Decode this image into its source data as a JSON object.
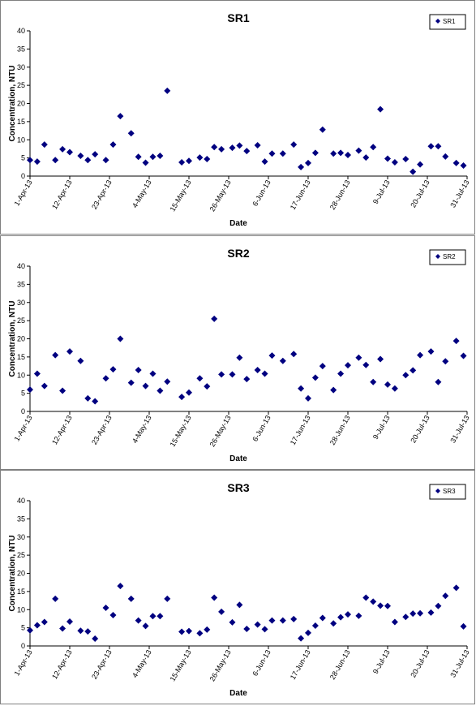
{
  "colors": {
    "marker": "#000080",
    "axis": "#000000",
    "frame": "#808080"
  },
  "chart_data": [
    {
      "type": "scatter",
      "title": "SR1",
      "xlabel": "Date",
      "ylabel": "Concentration, NTU",
      "ylim": [
        0,
        40
      ],
      "yticks": [
        0,
        5,
        10,
        15,
        20,
        25,
        30,
        35,
        40
      ],
      "xlim": [
        "2013-04-01",
        "2013-07-31"
      ],
      "xticks": [
        "1-Apr-13",
        "12-Apr-13",
        "23-Apr-13",
        "4-May-13",
        "15-May-13",
        "26-May-13",
        "6-Jun-13",
        "17-Jun-13",
        "28-Jun-13",
        "9-Jul-13",
        "20-Jul-13",
        "31-Jul-13"
      ],
      "grid": false,
      "legend_position": "top-right",
      "series": [
        {
          "name": "SR1",
          "marker": "diamond",
          "x": [
            "2013-04-01",
            "2013-04-03",
            "2013-04-05",
            "2013-04-08",
            "2013-04-10",
            "2013-04-12",
            "2013-04-15",
            "2013-04-17",
            "2013-04-19",
            "2013-04-22",
            "2013-04-24",
            "2013-04-26",
            "2013-04-29",
            "2013-05-01",
            "2013-05-03",
            "2013-05-05",
            "2013-05-07",
            "2013-05-09",
            "2013-05-13",
            "2013-05-15",
            "2013-05-18",
            "2013-05-20",
            "2013-05-22",
            "2013-05-24",
            "2013-05-27",
            "2013-05-29",
            "2013-05-31",
            "2013-06-03",
            "2013-06-05",
            "2013-06-07",
            "2013-06-10",
            "2013-06-13",
            "2013-06-15",
            "2013-06-17",
            "2013-06-19",
            "2013-06-21",
            "2013-06-24",
            "2013-06-26",
            "2013-06-28",
            "2013-07-01",
            "2013-07-03",
            "2013-07-05",
            "2013-07-07",
            "2013-07-09",
            "2013-07-11",
            "2013-07-14",
            "2013-07-16",
            "2013-07-18",
            "2013-07-21",
            "2013-07-23",
            "2013-07-25",
            "2013-07-28",
            "2013-07-30"
          ],
          "y": [
            4.4,
            4.0,
            8.7,
            4.4,
            7.4,
            6.6,
            5.6,
            4.4,
            6.0,
            4.4,
            8.7,
            16.5,
            11.8,
            5.3,
            3.7,
            5.3,
            5.6,
            23.5,
            3.8,
            4.2,
            5.1,
            4.7,
            8.0,
            7.4,
            7.8,
            8.4,
            6.9,
            8.5,
            4.0,
            6.2,
            6.2,
            8.7,
            2.5,
            3.6,
            6.4,
            12.8,
            6.2,
            6.4,
            5.8,
            7.0,
            5.1,
            8.0,
            18.4,
            4.8,
            3.8,
            4.7,
            1.2,
            3.2,
            8.2,
            8.2,
            5.4,
            3.6,
            2.9
          ]
        }
      ]
    },
    {
      "type": "scatter",
      "title": "SR2",
      "xlabel": "Date",
      "ylabel": "Concentration, NTU",
      "ylim": [
        0,
        40
      ],
      "yticks": [
        0,
        5,
        10,
        15,
        20,
        25,
        30,
        35,
        40
      ],
      "xlim": [
        "2013-04-01",
        "2013-07-31"
      ],
      "xticks": [
        "1-Apr-13",
        "12-Apr-13",
        "23-Apr-13",
        "4-May-13",
        "15-May-13",
        "26-May-13",
        "6-Jun-13",
        "17-Jun-13",
        "28-Jun-13",
        "9-Jul-13",
        "20-Jul-13",
        "31-Jul-13"
      ],
      "grid": false,
      "legend_position": "top-right",
      "series": [
        {
          "name": "SR2",
          "marker": "diamond",
          "x": [
            "2013-04-01",
            "2013-04-03",
            "2013-04-05",
            "2013-04-08",
            "2013-04-10",
            "2013-04-12",
            "2013-04-15",
            "2013-04-17",
            "2013-04-19",
            "2013-04-22",
            "2013-04-24",
            "2013-04-26",
            "2013-04-29",
            "2013-05-01",
            "2013-05-03",
            "2013-05-05",
            "2013-05-07",
            "2013-05-09",
            "2013-05-13",
            "2013-05-15",
            "2013-05-18",
            "2013-05-20",
            "2013-05-22",
            "2013-05-24",
            "2013-05-27",
            "2013-05-29",
            "2013-05-31",
            "2013-06-03",
            "2013-06-05",
            "2013-06-07",
            "2013-06-10",
            "2013-06-13",
            "2013-06-15",
            "2013-06-17",
            "2013-06-19",
            "2013-06-21",
            "2013-06-24",
            "2013-06-26",
            "2013-06-28",
            "2013-07-01",
            "2013-07-03",
            "2013-07-05",
            "2013-07-07",
            "2013-07-09",
            "2013-07-11",
            "2013-07-14",
            "2013-07-16",
            "2013-07-18",
            "2013-07-21",
            "2013-07-23",
            "2013-07-25",
            "2013-07-28",
            "2013-07-30"
          ],
          "y": [
            6.0,
            10.4,
            7.0,
            15.5,
            5.7,
            16.5,
            13.9,
            3.6,
            2.8,
            9.1,
            11.6,
            20.0,
            7.9,
            11.4,
            7.0,
            10.4,
            5.7,
            8.2,
            4.0,
            5.2,
            9.1,
            6.9,
            25.5,
            10.2,
            10.2,
            14.8,
            8.9,
            11.4,
            10.4,
            15.4,
            13.9,
            15.8,
            6.3,
            3.6,
            9.3,
            12.5,
            5.9,
            10.4,
            12.7,
            14.8,
            12.8,
            8.1,
            14.4,
            7.4,
            6.3,
            10.0,
            11.3,
            15.5,
            16.5,
            8.1,
            13.8,
            19.4,
            15.3
          ]
        }
      ]
    },
    {
      "type": "scatter",
      "title": "SR3",
      "xlabel": "Date",
      "ylabel": "Concentration, NTU",
      "ylim": [
        0,
        40
      ],
      "yticks": [
        0,
        5,
        10,
        15,
        20,
        25,
        30,
        35,
        40
      ],
      "xlim": [
        "2013-04-01",
        "2013-07-31"
      ],
      "xticks": [
        "1-Apr-13",
        "12-Apr-13",
        "23-Apr-13",
        "4-May-13",
        "15-May-13",
        "26-May-13",
        "6-Jun-13",
        "17-Jun-13",
        "28-Jun-13",
        "9-Jul-13",
        "20-Jul-13",
        "31-Jul-13"
      ],
      "grid": false,
      "legend_position": "top-right",
      "series": [
        {
          "name": "SR3",
          "marker": "diamond",
          "x": [
            "2013-04-01",
            "2013-04-03",
            "2013-04-05",
            "2013-04-08",
            "2013-04-10",
            "2013-04-12",
            "2013-04-15",
            "2013-04-17",
            "2013-04-19",
            "2013-04-22",
            "2013-04-24",
            "2013-04-26",
            "2013-04-29",
            "2013-05-01",
            "2013-05-03",
            "2013-05-05",
            "2013-05-07",
            "2013-05-09",
            "2013-05-13",
            "2013-05-15",
            "2013-05-18",
            "2013-05-20",
            "2013-05-22",
            "2013-05-24",
            "2013-05-27",
            "2013-05-29",
            "2013-05-31",
            "2013-06-03",
            "2013-06-05",
            "2013-06-07",
            "2013-06-10",
            "2013-06-13",
            "2013-06-15",
            "2013-06-17",
            "2013-06-19",
            "2013-06-21",
            "2013-06-24",
            "2013-06-26",
            "2013-06-28",
            "2013-07-01",
            "2013-07-03",
            "2013-07-05",
            "2013-07-07",
            "2013-07-09",
            "2013-07-11",
            "2013-07-14",
            "2013-07-16",
            "2013-07-18",
            "2013-07-21",
            "2013-07-23",
            "2013-07-25",
            "2013-07-28",
            "2013-07-30"
          ],
          "y": [
            4.3,
            5.7,
            6.6,
            13.0,
            4.8,
            6.7,
            4.2,
            4.0,
            2.0,
            10.5,
            8.5,
            16.5,
            13.0,
            7.0,
            5.5,
            8.2,
            8.2,
            13.0,
            3.9,
            4.1,
            3.5,
            4.5,
            13.3,
            9.4,
            6.5,
            11.3,
            4.7,
            5.9,
            4.6,
            7.0,
            7.0,
            7.4,
            2.1,
            3.6,
            5.6,
            7.7,
            6.2,
            7.9,
            8.7,
            8.3,
            13.3,
            12.2,
            11.1,
            11.0,
            6.6,
            8.0,
            8.9,
            9.0,
            9.2,
            11.0,
            13.8,
            16.0,
            5.4
          ]
        }
      ]
    }
  ]
}
